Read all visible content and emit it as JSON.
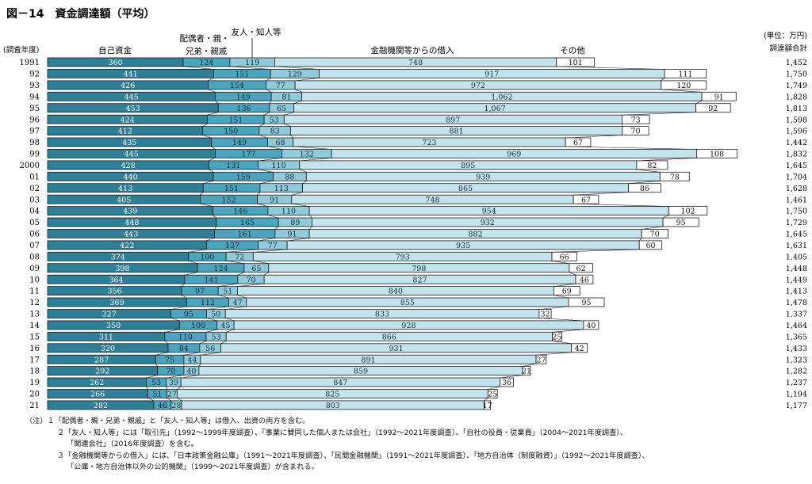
{
  "chart_data": {
    "type": "bar",
    "stacked": true,
    "orientation": "horizontal",
    "title": "図－14　資金調達額（平均）",
    "y_axis_title": "(調査年度)",
    "unit_note": "(単位：万円)",
    "total_header": "調達額合計",
    "categories": [
      "1991",
      "92",
      "93",
      "94",
      "95",
      "96",
      "97",
      "98",
      "99",
      "2000",
      "01",
      "02",
      "03",
      "04",
      "05",
      "06",
      "07",
      "08",
      "09",
      "10",
      "11",
      "12",
      "13",
      "14",
      "15",
      "16",
      "17",
      "18",
      "19",
      "20",
      "21"
    ],
    "series": [
      {
        "name": "自己資金",
        "values": [
          360,
          441,
          426,
          445,
          453,
          424,
          412,
          435,
          445,
          428,
          440,
          413,
          405,
          439,
          448,
          443,
          422,
          374,
          398,
          364,
          356,
          369,
          327,
          350,
          311,
          320,
          287,
          292,
          262,
          266,
          282
        ]
      },
      {
        "name": "配偶者・親・兄弟・親戚",
        "values": [
          124,
          151,
          154,
          149,
          136,
          151,
          150,
          149,
          177,
          131,
          159,
          151,
          152,
          146,
          165,
          161,
          137,
          100,
          124,
          141,
          97,
          112,
          95,
          100,
          110,
          84,
          75,
          70,
          53,
          51,
          46
        ]
      },
      {
        "name": "友人・知人等",
        "values": [
          119,
          129,
          77,
          81,
          65,
          53,
          83,
          68,
          132,
          110,
          88,
          113,
          91,
          110,
          89,
          91,
          77,
          72,
          65,
          70,
          51,
          47,
          50,
          45,
          53,
          56,
          44,
          40,
          39,
          27,
          28
        ]
      },
      {
        "name": "金融機関等からの借入",
        "values": [
          748,
          917,
          972,
          1062,
          1067,
          897,
          881,
          723,
          969,
          895,
          939,
          865,
          748,
          954,
          932,
          882,
          935,
          793,
          798,
          827,
          840,
          855,
          833,
          928,
          866,
          931,
          891,
          859,
          847,
          825,
          803
        ]
      },
      {
        "name": "その他",
        "values": [
          101,
          111,
          120,
          91,
          92,
          73,
          70,
          67,
          108,
          82,
          78,
          86,
          67,
          102,
          95,
          70,
          60,
          66,
          62,
          46,
          69,
          95,
          32,
          40,
          25,
          42,
          27,
          21,
          36,
          25,
          17
        ]
      }
    ],
    "value_labels": {
      "own": [
        "360",
        "441",
        "426",
        "445",
        "453",
        "424",
        "412",
        "435",
        "445",
        "428",
        "440",
        "413",
        "405",
        "439",
        "448",
        "443",
        "422",
        "374",
        "398",
        "364",
        "356",
        "369",
        "327",
        "350",
        "311",
        "320",
        "287",
        "292",
        "262",
        "266",
        "282"
      ],
      "family": [
        "124",
        "151",
        "154",
        "149",
        "136",
        "151",
        "150",
        "149",
        "177",
        "131",
        "159",
        "151",
        "152",
        "146",
        "165",
        "161",
        "137",
        "100",
        "124",
        "141",
        "97",
        "112",
        "95",
        "100",
        "110",
        "84",
        "75",
        "70",
        "53",
        "51",
        "46"
      ],
      "friends": [
        "119",
        "129",
        "77",
        "81",
        "65",
        "53",
        "83",
        "68",
        "132",
        "110",
        "88",
        "113",
        "91",
        "110",
        "89",
        "91",
        "77",
        "72",
        "65",
        "70",
        "51",
        "47",
        "50",
        "45",
        "53",
        "56",
        "44",
        "40",
        "39",
        "27",
        "28"
      ],
      "loans": [
        "748",
        "917",
        "972",
        "1,062",
        "1,067",
        "897",
        "881",
        "723",
        "969",
        "895",
        "939",
        "865",
        "748",
        "954",
        "932",
        "882",
        "935",
        "793",
        "798",
        "827",
        "840",
        "855",
        "833",
        "928",
        "866",
        "931",
        "891",
        "859",
        "847",
        "825",
        "803"
      ],
      "other": [
        "101",
        "111",
        "120",
        "91",
        "92",
        "73",
        "70",
        "67",
        "108",
        "82",
        "78",
        "86",
        "67",
        "102",
        "95",
        "70",
        "60",
        "66",
        "62",
        "46",
        "69",
        "95",
        "32",
        "40",
        "25",
        "42",
        "27",
        "21",
        "36",
        "25",
        "17"
      ]
    },
    "totals": [
      "1,452",
      "1,750",
      "1,749",
      "1,828",
      "1,813",
      "1,598",
      "1,596",
      "1,442",
      "1,832",
      "1,645",
      "1,704",
      "1,628",
      "1,461",
      "1,750",
      "1,729",
      "1,645",
      "1,631",
      "1,405",
      "1,448",
      "1,449",
      "1,413",
      "1,478",
      "1,337",
      "1,464",
      "1,365",
      "1,433",
      "1,323",
      "1,282",
      "1,237",
      "1,194",
      "1,177"
    ],
    "header_labels": {
      "own": "自己資金",
      "family_line1": "配偶者・親・",
      "family_line2": "兄弟・親戚",
      "friends": "友人・知人等",
      "loans": "金融機関等からの借入",
      "other": "その他"
    },
    "colors": {
      "own": "#2e7f98",
      "family": "#4aa5bf",
      "friends": "#8fcbdb",
      "loans": "#c3e4ed",
      "other": "#ffffff",
      "stroke": "#1a1a1a"
    }
  },
  "notes": [
    "（注）１「配偶者・親・兄弟・親戚」と「友人・知人等」は借入、出資の両方を含む。",
    "２「友人・知人等」には「取引先」（1992～1999年度調査）、「事業に賛同した個人または会社」（1992～2021年度調査）、「自社の役員・従業員」（2004～2021年度調査）、",
    "「関連会社」（2016年度調査）を含む。",
    "３「金融機関等からの借入」には、「日本政策金融公庫」（1991～2021年度調査）、「民間金融機関」（1991～2021年度調査）、「地方自治体（制度融資）」（1992～2021年度調査）、",
    "「公庫・地方自治体以外の公的機関」（1999～2021年度調査）が含まれる。"
  ]
}
